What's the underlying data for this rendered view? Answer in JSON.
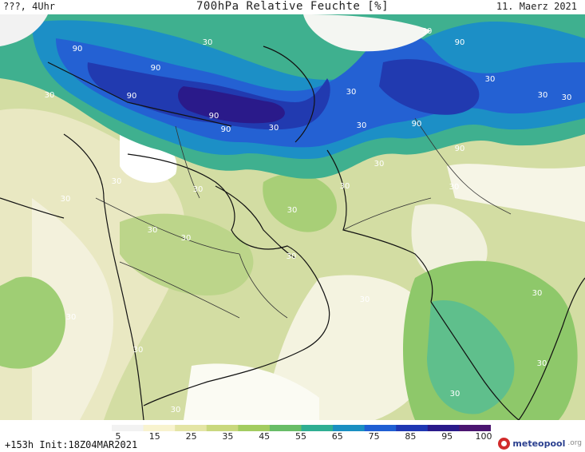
{
  "header": {
    "left_text": "???, 4Uhr",
    "title": "700hPa Relative Feuchte [%]",
    "date": "11. Maerz 2021"
  },
  "footer": {
    "init_text": "+153h Init:18Z04MAR2021",
    "brand_name": "meteopool",
    "brand_tld": ".org"
  },
  "legend": {
    "ticks": [
      "5",
      "15",
      "25",
      "35",
      "45",
      "55",
      "65",
      "75",
      "85",
      "95",
      "100"
    ],
    "colors": [
      "#f2f2f2",
      "#f8f3cf",
      "#e4e5a6",
      "#c9d87f",
      "#a3cc62",
      "#68bd68",
      "#2fae93",
      "#1a8fc2",
      "#1f5fd3",
      "#1f37b3",
      "#2a1a8a",
      "#4b1570"
    ]
  },
  "map": {
    "contour_labels": [
      "90",
      "90",
      "90",
      "30",
      "30",
      "90",
      "90",
      "90",
      "90",
      "90",
      "30",
      "30",
      "90",
      "30",
      "30",
      "90",
      "90",
      "30",
      "30",
      "30",
      "30",
      "30",
      "30",
      "30",
      "30",
      "30",
      "30",
      "30",
      "30",
      "30",
      "30",
      "30",
      "30",
      "30",
      "30",
      "30",
      "30",
      "30",
      "30",
      "30",
      "30",
      "30",
      "30",
      "30",
      "30"
    ]
  }
}
